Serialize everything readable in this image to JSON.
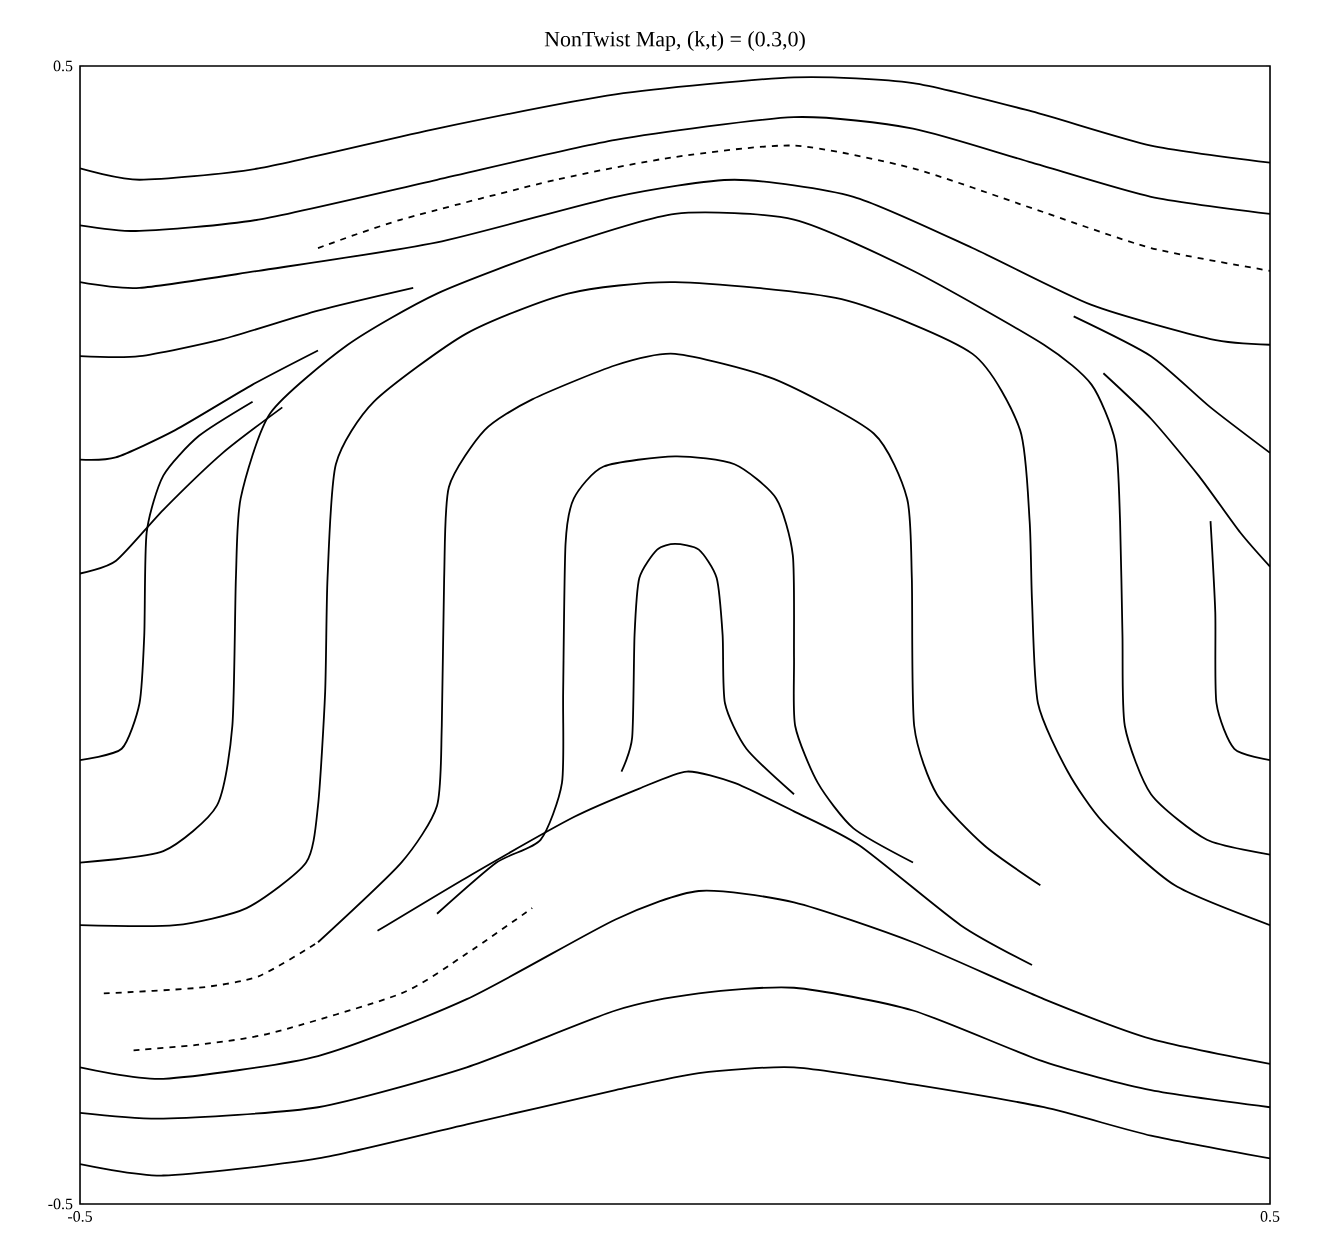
{
  "chart_data": {
    "type": "line",
    "title": "NonTwist Map, (k,t) =  (0.3,0)",
    "xlim": [
      -0.5,
      0.5
    ],
    "ylim": [
      -0.5,
      0.5
    ],
    "xticks": [
      -0.5,
      0.5
    ],
    "yticks": [
      -0.5,
      0.5
    ],
    "series": [
      {
        "color": "#000000",
        "x": [
          -0.5,
          -0.45,
          -0.35,
          -0.2,
          -0.05,
          0.1,
          0.2,
          0.3,
          0.4,
          0.5
        ],
        "values": [
          0.41,
          0.4,
          0.41,
          0.445,
          0.475,
          0.49,
          0.485,
          0.46,
          0.43,
          0.415
        ]
      },
      {
        "color": "#000000",
        "x": [
          -0.5,
          -0.45,
          -0.35,
          -0.2,
          -0.05,
          0.1,
          0.2,
          0.3,
          0.4,
          0.5
        ],
        "values": [
          0.36,
          0.355,
          0.365,
          0.4,
          0.435,
          0.455,
          0.445,
          0.415,
          0.385,
          0.37
        ]
      },
      {
        "color": "#000000",
        "line_style": "dashed",
        "x": [
          -0.3,
          -0.23,
          -0.1,
          0,
          0.1,
          0.2,
          0.3,
          0.4,
          0.5
        ],
        "values": [
          0.34,
          0.365,
          0.4,
          0.42,
          0.43,
          0.41,
          0.375,
          0.34,
          0.32
        ]
      },
      {
        "color": "#000000",
        "x": [
          -0.5,
          -0.45,
          -0.35,
          -0.2,
          -0.05,
          0.05,
          0.15,
          0.25,
          0.35,
          0.45,
          0.5
        ],
        "values": [
          0.31,
          0.305,
          0.32,
          0.345,
          0.385,
          0.4,
          0.385,
          0.34,
          0.29,
          0.26,
          0.255
        ]
      },
      {
        "color": "#000000",
        "x": [
          -0.5,
          -0.45,
          -0.38,
          -0.3,
          -0.22
        ],
        "values": [
          0.245,
          0.245,
          0.26,
          0.285,
          0.305
        ]
      },
      {
        "color": "#000000",
        "x": [
          -0.5,
          -0.47,
          -0.42,
          -0.355,
          -0.3
        ],
        "values": [
          0.154,
          0.156,
          0.18,
          0.22,
          0.25
        ]
      },
      {
        "color": "#000000",
        "x": [
          0.5,
          0.45,
          0.4,
          0.335
        ],
        "values": [
          0.16,
          0.2,
          0.245,
          0.28
        ]
      },
      {
        "color": "#000000",
        "x": [
          -0.5,
          -0.47,
          -0.43,
          -0.38,
          -0.33
        ],
        "values": [
          0.054,
          0.065,
          0.11,
          0.16,
          0.2
        ]
      },
      {
        "color": "#000000",
        "x": [
          0.5,
          0.475,
          0.44,
          0.4,
          0.36
        ],
        "values": [
          0.06,
          0.09,
          0.14,
          0.19,
          0.23
        ]
      },
      {
        "color": "#000000",
        "x": [
          -0.5,
          -0.465,
          -0.45,
          -0.446,
          -0.444,
          -0.43,
          -0.4,
          -0.355
        ],
        "values": [
          -0.11,
          -0.1,
          -0.06,
          0,
          0.09,
          0.14,
          0.175,
          0.205
        ]
      },
      {
        "color": "#000000",
        "x": [
          0.5,
          0.47,
          0.455,
          0.454,
          0.45
        ],
        "values": [
          -0.11,
          -0.1,
          -0.06,
          0.02,
          0.1
        ]
      },
      {
        "color": "#000000",
        "x": [
          -0.5,
          -0.43,
          -0.385,
          -0.372,
          -0.369,
          -0.365,
          -0.34,
          -0.275,
          -0.2,
          -0.1,
          0,
          0.1,
          0.2,
          0.31,
          0.35,
          0.37,
          0.374,
          0.376,
          0.378,
          0.4,
          0.447,
          0.5
        ],
        "values": [
          -0.2,
          -0.19,
          -0.15,
          -0.08,
          0.05,
          0.12,
          0.195,
          0.255,
          0.3,
          0.34,
          0.37,
          0.365,
          0.32,
          0.255,
          0.22,
          0.17,
          0.1,
          0,
          -0.08,
          -0.14,
          -0.18,
          -0.193
        ]
      },
      {
        "color": "#000000",
        "x": [
          -0.5,
          -0.42,
          -0.36,
          -0.31,
          -0.3,
          -0.294,
          -0.292,
          -0.285,
          -0.253,
          -0.175,
          -0.09,
          0,
          0.14,
          0.25,
          0.29,
          0.298,
          0.3,
          0.305,
          0.33,
          0.36,
          0.42,
          0.5
        ],
        "values": [
          -0.255,
          -0.255,
          -0.24,
          -0.2,
          -0.15,
          -0.05,
          0.05,
          0.15,
          0.205,
          0.265,
          0.3,
          0.31,
          0.295,
          0.247,
          0.18,
          0.1,
          0.03,
          -0.06,
          -0.12,
          -0.165,
          -0.22,
          -0.255
        ]
      },
      {
        "color": "#000000",
        "x": [
          -0.3,
          -0.23,
          -0.2,
          -0.196,
          -0.194,
          -0.19,
          -0.16,
          -0.12,
          -0.05,
          0,
          0.083,
          0.167,
          0.195,
          0.199,
          0.201,
          0.22,
          0.26,
          0.307
        ],
        "values": [
          -0.27,
          -0.2,
          -0.15,
          -0.08,
          0.05,
          0.13,
          0.18,
          0.207,
          0.237,
          0.247,
          0.225,
          0.177,
          0.12,
          0.05,
          -0.08,
          -0.14,
          -0.185,
          -0.22
        ]
      },
      {
        "color": "#000000",
        "x": [
          -0.2,
          -0.15,
          -0.113,
          -0.095,
          -0.094,
          -0.092,
          -0.085,
          -0.06,
          0,
          0.05,
          0.085,
          0.099,
          0.1,
          0.101,
          0.12,
          0.15,
          0.2
        ],
        "values": [
          -0.245,
          -0.2,
          -0.18,
          -0.13,
          -0.05,
          0.08,
          0.12,
          0.148,
          0.157,
          0.15,
          0.12,
          0.07,
          -0.02,
          -0.08,
          -0.13,
          -0.17,
          -0.2
        ]
      },
      {
        "color": "#000000",
        "x": [
          -0.045,
          -0.036,
          -0.034,
          -0.03,
          -0.015,
          0,
          0.02,
          0.035,
          0.04,
          0.042,
          0.06,
          0.1
        ],
        "values": [
          -0.12,
          -0.09,
          0,
          0.05,
          0.075,
          0.08,
          0.075,
          0.05,
          0,
          -0.06,
          -0.1,
          -0.14
        ]
      },
      {
        "color": "#000000",
        "x": [
          -0.25,
          -0.17,
          -0.085,
          -0.03,
          0.01,
          0.05,
          0.1,
          0.155,
          0.24,
          0.3
        ],
        "values": [
          -0.26,
          -0.21,
          -0.16,
          -0.135,
          -0.12,
          -0.13,
          -0.155,
          -0.185,
          -0.255,
          -0.29
        ]
      },
      {
        "color": "#000000",
        "line_style": "dashed",
        "x": [
          -0.48,
          -0.4,
          -0.35,
          -0.3
        ],
        "values": [
          -0.315,
          -0.31,
          -0.3,
          -0.27
        ]
      },
      {
        "color": "#000000",
        "line_style": "dashed",
        "x": [
          -0.455,
          -0.4,
          -0.34,
          -0.23,
          -0.175,
          -0.12
        ],
        "values": [
          -0.365,
          -0.36,
          -0.35,
          -0.315,
          -0.28,
          -0.24
        ]
      },
      {
        "color": "#000000",
        "x": [
          -0.5,
          -0.43,
          -0.3,
          -0.175,
          -0.05,
          0.02,
          0.1,
          0.2,
          0.31,
          0.4,
          0.5
        ],
        "values": [
          -0.38,
          -0.39,
          -0.37,
          -0.32,
          -0.25,
          -0.225,
          -0.235,
          -0.27,
          -0.32,
          -0.355,
          -0.377
        ]
      },
      {
        "color": "#000000",
        "x": [
          -0.5,
          -0.43,
          -0.3,
          -0.175,
          -0.05,
          0.02,
          0.1,
          0.2,
          0.31,
          0.4,
          0.5
        ],
        "values": [
          -0.42,
          -0.425,
          -0.415,
          -0.38,
          -0.33,
          -0.315,
          -0.31,
          -0.33,
          -0.375,
          -0.4,
          -0.415
        ]
      },
      {
        "color": "#000000",
        "x": [
          -0.5,
          -0.43,
          -0.3,
          -0.175,
          -0.05,
          0.02,
          0.1,
          0.2,
          0.31,
          0.4,
          0.5
        ],
        "values": [
          -0.465,
          -0.475,
          -0.46,
          -0.43,
          -0.4,
          -0.385,
          -0.38,
          -0.395,
          -0.415,
          -0.44,
          -0.46
        ]
      }
    ]
  }
}
